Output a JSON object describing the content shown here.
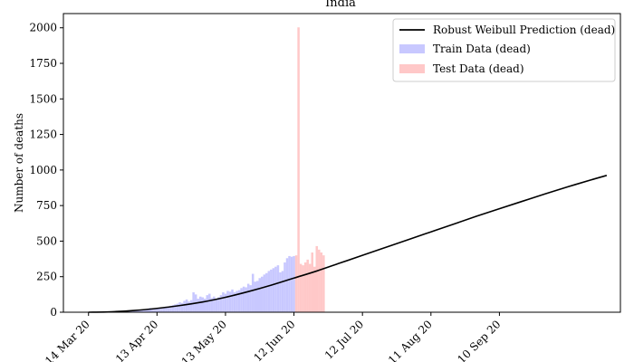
{
  "chart_data": {
    "type": "bar",
    "title": "India",
    "ylabel": "Number of deaths",
    "xlabel": "",
    "ylim": [
      0,
      2100
    ],
    "y_ticks": [
      0,
      250,
      500,
      750,
      1000,
      1250,
      1500,
      1750,
      2000
    ],
    "x_ticks": [
      {
        "date": "2020-03-14",
        "label": "14 Mar 20"
      },
      {
        "date": "2020-04-13",
        "label": "13 Apr 20"
      },
      {
        "date": "2020-05-13",
        "label": "13 May 20"
      },
      {
        "date": "2020-06-12",
        "label": "12 Jun 20"
      },
      {
        "date": "2020-07-12",
        "label": "12 Jul 20"
      },
      {
        "date": "2020-08-11",
        "label": "11 Aug 20"
      },
      {
        "date": "2020-09-10",
        "label": "10 Sep 20"
      }
    ],
    "xlim": [
      "2020-03-03",
      "2020-11-02"
    ],
    "legend_position": "top-right",
    "colors": {
      "prediction": "#000000",
      "train": "#c8c8ff",
      "test": "#ffc8c8"
    },
    "series": [
      {
        "name": "Robust Weibull Prediction (dead)",
        "kind": "line",
        "points": [
          [
            "2020-03-14",
            0
          ],
          [
            "2020-03-24",
            3
          ],
          [
            "2020-04-03",
            12
          ],
          [
            "2020-04-13",
            27
          ],
          [
            "2020-04-23",
            47
          ],
          [
            "2020-05-03",
            72
          ],
          [
            "2020-05-13",
            105
          ],
          [
            "2020-05-23",
            145
          ],
          [
            "2020-06-02",
            190
          ],
          [
            "2020-06-12",
            240
          ],
          [
            "2020-06-22",
            290
          ],
          [
            "2020-07-02",
            345
          ],
          [
            "2020-07-12",
            400
          ],
          [
            "2020-07-22",
            455
          ],
          [
            "2020-08-01",
            510
          ],
          [
            "2020-08-11",
            565
          ],
          [
            "2020-08-21",
            620
          ],
          [
            "2020-08-31",
            675
          ],
          [
            "2020-09-10",
            728
          ],
          [
            "2020-09-20",
            780
          ],
          [
            "2020-09-30",
            832
          ],
          [
            "2020-10-10",
            882
          ],
          [
            "2020-10-20",
            930
          ],
          [
            "2020-10-27",
            962
          ]
        ]
      },
      {
        "name": "Train Data (dead)",
        "kind": "bar",
        "start": "2020-03-14",
        "values": [
          1,
          0,
          0,
          1,
          0,
          1,
          0,
          1,
          1,
          2,
          3,
          2,
          3,
          5,
          4,
          6,
          8,
          10,
          11,
          13,
          14,
          16,
          18,
          17,
          20,
          22,
          25,
          30,
          28,
          27,
          30,
          32,
          35,
          37,
          40,
          38,
          45,
          50,
          55,
          60,
          70,
          65,
          80,
          90,
          75,
          85,
          140,
          125,
          95,
          110,
          105,
          95,
          120,
          130,
          100,
          110,
          95,
          105,
          120,
          140,
          130,
          150,
          145,
          160,
          140,
          150,
          155,
          170,
          180,
          175,
          200,
          190,
          270,
          215,
          220,
          240,
          250,
          265,
          275,
          290,
          300,
          310,
          320,
          330,
          280,
          290,
          350,
          380,
          395,
          390,
          395
        ]
      },
      {
        "name": "Test Data (dead)",
        "kind": "bar",
        "start": "2020-06-13",
        "values": [
          400,
          2003,
          340,
          330,
          350,
          370,
          340,
          420,
          320,
          465,
          440,
          420,
          400
        ]
      }
    ]
  }
}
